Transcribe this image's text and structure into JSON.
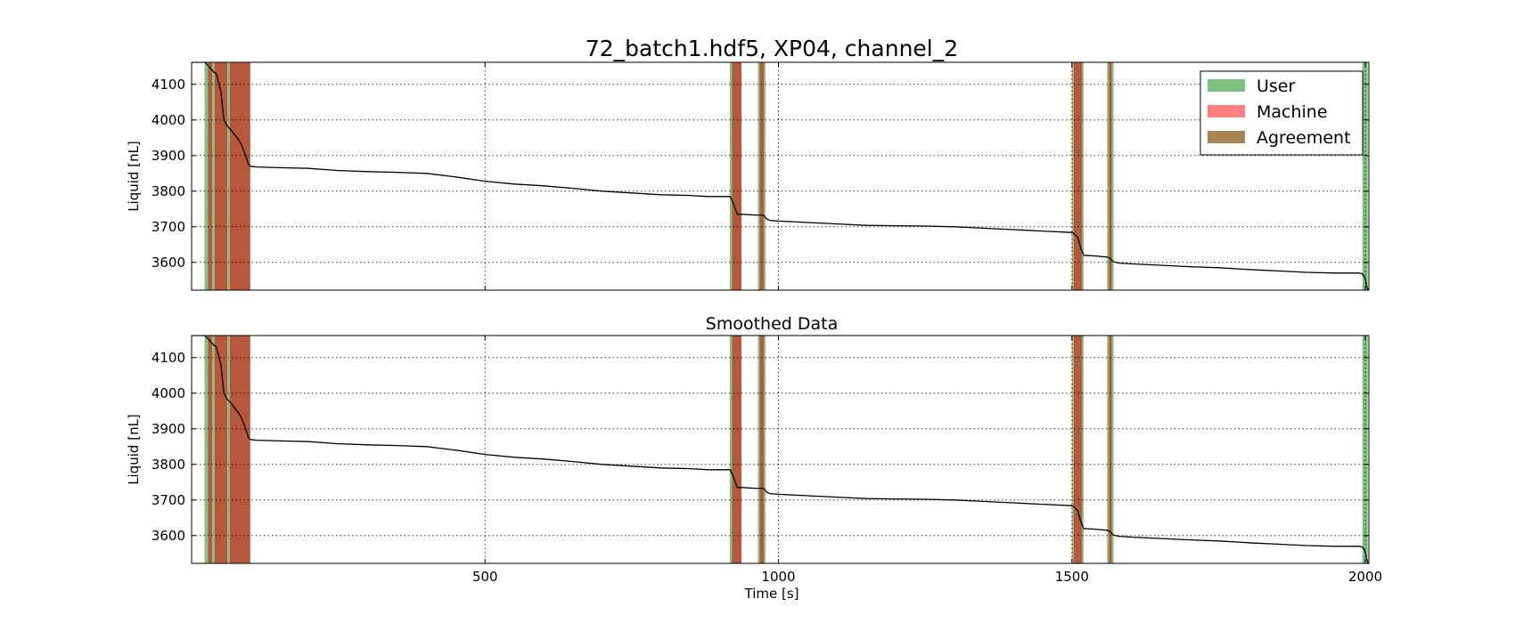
{
  "chart_data": [
    {
      "type": "line",
      "title": "72_batch1.hdf5, XP04, channel_2",
      "xlabel": "",
      "ylabel": "Liquid [nL]",
      "xlim": [
        0,
        2006
      ],
      "ylim": [
        3522,
        4162
      ],
      "xticks": [
        "500",
        "1000",
        "1500",
        "2000"
      ],
      "yticks": [
        "3600",
        "3700",
        "3800",
        "3900",
        "4000",
        "4100"
      ],
      "grid": true,
      "legend": {
        "position": "top-right",
        "entries": [
          "User",
          "Machine",
          "Agreement"
        ]
      },
      "series": [
        {
          "x": [
            0,
            23,
            35,
            38,
            42,
            50,
            55,
            60,
            68,
            75,
            80,
            85,
            92,
            97,
            100,
            110,
            150,
            200,
            250,
            300,
            350,
            400,
            450,
            500,
            550,
            600,
            650,
            700,
            750,
            800,
            850,
            880,
            918,
            922,
            930,
            940,
            960,
            968,
            975,
            980,
            985,
            1000,
            1050,
            1100,
            1150,
            1200,
            1250,
            1300,
            1350,
            1400,
            1450,
            1500,
            1502,
            1510,
            1515,
            1520,
            1540,
            1560,
            1565,
            1570,
            1575,
            1580,
            1600,
            1650,
            1700,
            1750,
            1800,
            1850,
            1900,
            1950,
            1990,
            1995,
            2000,
            2002,
            2005
          ],
          "values": [
            4162,
            4162,
            4140,
            4135,
            4130,
            4080,
            4000,
            3985,
            3970,
            3955,
            3945,
            3930,
            3900,
            3875,
            3870,
            3868,
            3866,
            3864,
            3858,
            3855,
            3853,
            3850,
            3840,
            3828,
            3820,
            3815,
            3808,
            3800,
            3795,
            3790,
            3788,
            3785,
            3785,
            3770,
            3735,
            3735,
            3733,
            3733,
            3732,
            3722,
            3718,
            3716,
            3712,
            3708,
            3704,
            3703,
            3702,
            3700,
            3696,
            3692,
            3688,
            3684,
            3683,
            3670,
            3640,
            3620,
            3618,
            3615,
            3612,
            3602,
            3600,
            3598,
            3596,
            3592,
            3588,
            3585,
            3580,
            3576,
            3572,
            3570,
            3570,
            3568,
            3555,
            3535,
            3522
          ]
        }
      ],
      "regions": [
        {
          "start": 22,
          "end": 28,
          "label": "User"
        },
        {
          "start": 28,
          "end": 35,
          "label": "Agreement"
        },
        {
          "start": 35,
          "end": 39,
          "label": "User"
        },
        {
          "start": 39,
          "end": 61,
          "label": "Agreement"
        },
        {
          "start": 61,
          "end": 65,
          "label": "User"
        },
        {
          "start": 65,
          "end": 100,
          "label": "Agreement"
        },
        {
          "start": 917,
          "end": 921,
          "label": "User"
        },
        {
          "start": 921,
          "end": 937,
          "label": "Agreement"
        },
        {
          "start": 965,
          "end": 968,
          "label": "User"
        },
        {
          "start": 968,
          "end": 975,
          "label": "Agreement"
        },
        {
          "start": 975,
          "end": 978,
          "label": "User"
        },
        {
          "start": 1500,
          "end": 1503,
          "label": "User"
        },
        {
          "start": 1503,
          "end": 1517,
          "label": "Agreement"
        },
        {
          "start": 1517,
          "end": 1520,
          "label": "User"
        },
        {
          "start": 1560,
          "end": 1563,
          "label": "User"
        },
        {
          "start": 1563,
          "end": 1568,
          "label": "Agreement"
        },
        {
          "start": 1568,
          "end": 1571,
          "label": "User"
        },
        {
          "start": 1995,
          "end": 2004,
          "label": "User"
        }
      ],
      "colors": {
        "User": "#80c080",
        "Machine": "#ff8080",
        "Agreement": "#a88457",
        "line": "#000000"
      }
    },
    {
      "type": "line",
      "title": "Smoothed Data",
      "xlabel": "Time [s]",
      "ylabel": "Liquid [nL]",
      "xlim": [
        0,
        2006
      ],
      "ylim": [
        3522,
        4162
      ],
      "xticks": [
        "500",
        "1000",
        "1500",
        "2000"
      ],
      "yticks": [
        "3600",
        "3700",
        "3800",
        "3900",
        "4000",
        "4100"
      ],
      "grid": true,
      "series": [
        {
          "x": [
            0,
            23,
            35,
            38,
            42,
            50,
            55,
            60,
            68,
            75,
            80,
            85,
            92,
            97,
            100,
            110,
            150,
            200,
            250,
            300,
            350,
            400,
            450,
            500,
            550,
            600,
            650,
            700,
            750,
            800,
            850,
            880,
            918,
            922,
            930,
            940,
            960,
            968,
            975,
            980,
            985,
            1000,
            1050,
            1100,
            1150,
            1200,
            1250,
            1300,
            1350,
            1400,
            1450,
            1500,
            1502,
            1510,
            1515,
            1520,
            1540,
            1560,
            1565,
            1570,
            1575,
            1580,
            1600,
            1650,
            1700,
            1750,
            1800,
            1850,
            1900,
            1950,
            1990,
            1995,
            2000,
            2002,
            2005
          ],
          "values": [
            4162,
            4162,
            4140,
            4135,
            4130,
            4080,
            4000,
            3985,
            3970,
            3955,
            3945,
            3930,
            3900,
            3875,
            3870,
            3868,
            3866,
            3864,
            3858,
            3855,
            3853,
            3850,
            3840,
            3828,
            3820,
            3815,
            3808,
            3800,
            3795,
            3790,
            3788,
            3785,
            3785,
            3770,
            3735,
            3735,
            3733,
            3733,
            3732,
            3722,
            3718,
            3716,
            3712,
            3708,
            3704,
            3703,
            3702,
            3700,
            3696,
            3692,
            3688,
            3684,
            3683,
            3670,
            3640,
            3620,
            3618,
            3615,
            3612,
            3602,
            3600,
            3598,
            3596,
            3592,
            3588,
            3585,
            3580,
            3576,
            3572,
            3570,
            3570,
            3568,
            3555,
            3535,
            3522
          ]
        }
      ],
      "regions": [
        {
          "start": 22,
          "end": 28,
          "label": "User"
        },
        {
          "start": 28,
          "end": 35,
          "label": "Agreement"
        },
        {
          "start": 35,
          "end": 39,
          "label": "User"
        },
        {
          "start": 39,
          "end": 61,
          "label": "Agreement"
        },
        {
          "start": 61,
          "end": 65,
          "label": "User"
        },
        {
          "start": 65,
          "end": 100,
          "label": "Agreement"
        },
        {
          "start": 917,
          "end": 921,
          "label": "User"
        },
        {
          "start": 921,
          "end": 937,
          "label": "Agreement"
        },
        {
          "start": 965,
          "end": 968,
          "label": "User"
        },
        {
          "start": 968,
          "end": 975,
          "label": "Agreement"
        },
        {
          "start": 975,
          "end": 978,
          "label": "User"
        },
        {
          "start": 1500,
          "end": 1503,
          "label": "User"
        },
        {
          "start": 1503,
          "end": 1517,
          "label": "Agreement"
        },
        {
          "start": 1517,
          "end": 1520,
          "label": "User"
        },
        {
          "start": 1560,
          "end": 1563,
          "label": "User"
        },
        {
          "start": 1563,
          "end": 1568,
          "label": "Agreement"
        },
        {
          "start": 1568,
          "end": 1571,
          "label": "User"
        },
        {
          "start": 1995,
          "end": 2004,
          "label": "User"
        }
      ],
      "colors": {
        "User": "#80c080",
        "Machine": "#ff8080",
        "Agreement": "#a88457",
        "line": "#000000"
      }
    }
  ]
}
